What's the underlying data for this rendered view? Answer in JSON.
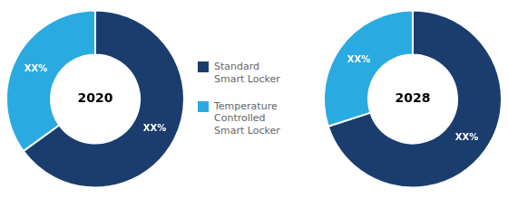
{
  "chart_data": [
    {
      "type": "doughnut",
      "title": "2020",
      "categories": [
        "Standard\nSmart Locker",
        "Temperature\nControlled\nSmart Locker"
      ],
      "values": [
        65,
        35
      ],
      "value_labels": [
        "XX%",
        "XX%"
      ],
      "colors": [
        "#1a3d6e",
        "#29aae1"
      ],
      "data_labels": true,
      "legend": "right"
    },
    {
      "type": "doughnut",
      "title": "2028",
      "categories": [
        "Standard\nSmart Locker",
        "Temperature\nControlled\nSmart Locker"
      ],
      "values": [
        70,
        30
      ],
      "value_labels": [
        "XX%",
        "XX%"
      ],
      "colors": [
        "#1a3d6e",
        "#29aae1"
      ],
      "data_labels": true
    }
  ]
}
